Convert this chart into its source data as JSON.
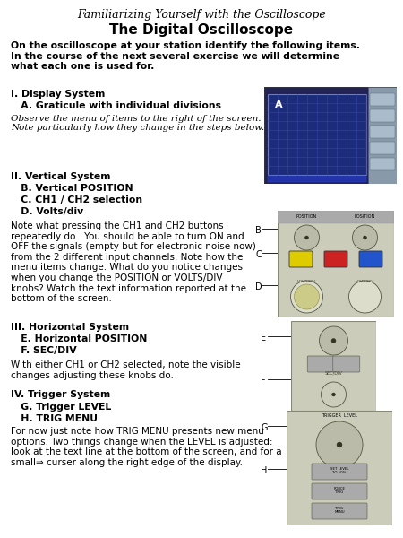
{
  "title_italic": "Familiarizing Yourself with the Oscilloscope",
  "title_bold": "The Digital Oscilloscope",
  "intro_text": "On the oscilloscope at your station identify the following items.\nIn the course of the next several exercise we will determine\nwhat each one is used for.",
  "section1_header": "I. Display System",
  "section1_sub": "   A. Graticule with individual divisions",
  "section1_italic": "Observe the menu of items to the right of the screen.\nNote particularly how they change in the steps below.",
  "section2_header": "II. Vertical System",
  "section2_subs": [
    "   B. Vertical POSITION",
    "   C. CH1 / CH2 selection",
    "   D. Volts/div"
  ],
  "section2_note": "Note what pressing the CH1 and CH2 buttons\nrepeatedly do.  You should be able to turn ON and\nOFF the signals (empty but for electronic noise now)\nfrom the 2 different input channels. Note how the\nmenu items change. What do you notice changes\nwhen you change the POSITION or VOLTS/DIV\nknobs? Watch the text information reported at the\nbottom of the screen.",
  "section3_header": "III. Horizontal System",
  "section3_subs": [
    "   E. Horizontal POSITION",
    "   F. SEC/DIV"
  ],
  "section3_note": "With either CH1 or CH2 selected, note the visible\nchanges adjusting these knobs do.",
  "section4_header": "IV. Trigger System",
  "section4_subs": [
    "   G. Trigger LEVEL",
    "   H. TRIG MENU"
  ],
  "section4_note": "For now just note how TRIG MENU presents new menu\noptions. Two things change when the LEVEL is adjusted:\nlook at the text line at the bottom of the screen, and for a\nsmall⇒ curser along the right edge of the display.",
  "bg_color": "#ffffff"
}
